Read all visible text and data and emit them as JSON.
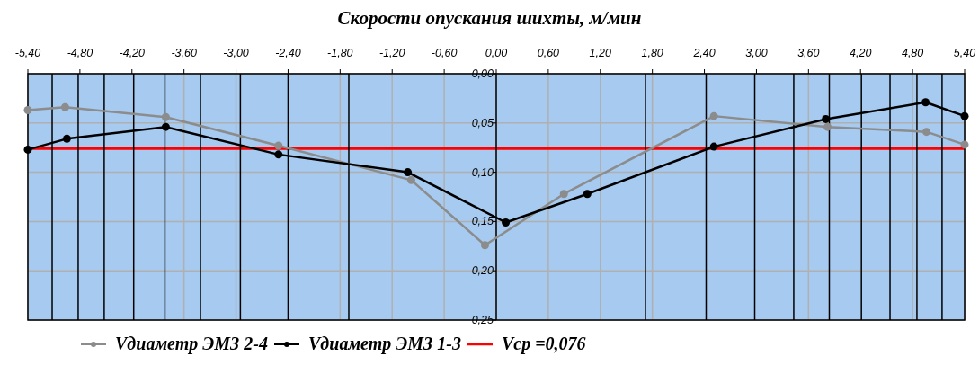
{
  "chart_data": {
    "type": "line",
    "title": "Скорости опускания шихты, м/мин",
    "xlim": [
      -5.4,
      5.4
    ],
    "xticks": [
      {
        "value": -5.4,
        "label": "-5,40"
      },
      {
        "value": -4.8,
        "label": "-4,80"
      },
      {
        "value": -4.2,
        "label": "-4,20"
      },
      {
        "value": -3.6,
        "label": "-3,60"
      },
      {
        "value": -3.0,
        "label": "-3,00"
      },
      {
        "value": -2.4,
        "label": "-2,40"
      },
      {
        "value": -1.8,
        "label": "-1,80"
      },
      {
        "value": -1.2,
        "label": "-1,20"
      },
      {
        "value": -0.6,
        "label": "-0,60"
      },
      {
        "value": 0,
        "label": "0,00"
      },
      {
        "value": 0.6,
        "label": "0,60"
      },
      {
        "value": 1.2,
        "label": "1,20"
      },
      {
        "value": 1.8,
        "label": "1,80"
      },
      {
        "value": 2.4,
        "label": "2,40"
      },
      {
        "value": 3.0,
        "label": "3,00"
      },
      {
        "value": 3.6,
        "label": "3,60"
      },
      {
        "value": 4.2,
        "label": "4,20"
      },
      {
        "value": 4.8,
        "label": "4,80"
      },
      {
        "value": 5.4,
        "label": "5,40"
      }
    ],
    "ylim": [
      0.25,
      0
    ],
    "yticks": [
      {
        "value": 0,
        "label": "0,00"
      },
      {
        "value": 0.05,
        "label": "0,05"
      },
      {
        "value": 0.1,
        "label": "0,10"
      },
      {
        "value": 0.15,
        "label": "0,15"
      },
      {
        "value": 0.2,
        "label": "0,20"
      },
      {
        "value": 0.25,
        "label": "0,25"
      }
    ],
    "grid": true,
    "legend": "bottom",
    "marker": "circle",
    "line_style": "solid",
    "series": [
      {
        "name": "Vдиаметр ЭМЗ 2-4",
        "color": "#8c8c8c",
        "x": [
          -5.4,
          -4.97,
          -3.81,
          -2.51,
          -0.98,
          -0.13,
          0.78,
          2.51,
          3.82,
          4.96,
          5.4
        ],
        "values": [
          0.037,
          0.034,
          0.044,
          0.073,
          0.108,
          0.174,
          0.122,
          0.043,
          0.054,
          0.059,
          0.072
        ]
      },
      {
        "name": "Vдиаметр ЭМЗ 1-3",
        "color": "#000000",
        "x": [
          -5.4,
          -4.95,
          -3.81,
          -2.51,
          -1.02,
          0.11,
          1.05,
          2.51,
          3.8,
          4.95,
          5.4
        ],
        "values": [
          0.077,
          0.066,
          0.054,
          0.082,
          0.1,
          0.151,
          0.122,
          0.074,
          0.046,
          0.029,
          0.043
        ]
      }
    ],
    "ref_lines": [
      {
        "axis": "y",
        "value": 0.076,
        "label": "Vср =0,076",
        "color": "#ff0000"
      },
      {
        "axis": "x",
        "value": -5.12,
        "color": "#000000"
      },
      {
        "axis": "x",
        "value": -4.82,
        "color": "#000000"
      },
      {
        "axis": "x",
        "value": -4.52,
        "color": "#000000"
      },
      {
        "axis": "x",
        "value": -4.18,
        "color": "#000000"
      },
      {
        "axis": "x",
        "value": -3.82,
        "color": "#000000"
      },
      {
        "axis": "x",
        "value": -3.41,
        "color": "#000000"
      },
      {
        "axis": "x",
        "value": -2.95,
        "color": "#000000"
      },
      {
        "axis": "x",
        "value": -2.4,
        "color": "#000000"
      },
      {
        "axis": "x",
        "value": -1.7,
        "color": "#000000"
      },
      {
        "axis": "x",
        "value": 1.72,
        "color": "#000000"
      },
      {
        "axis": "x",
        "value": 2.42,
        "color": "#000000"
      },
      {
        "axis": "x",
        "value": 2.98,
        "color": "#000000"
      },
      {
        "axis": "x",
        "value": 3.43,
        "color": "#000000"
      },
      {
        "axis": "x",
        "value": 3.84,
        "color": "#000000"
      },
      {
        "axis": "x",
        "value": 4.21,
        "color": "#000000"
      },
      {
        "axis": "x",
        "value": 4.54,
        "color": "#000000"
      },
      {
        "axis": "x",
        "value": 4.85,
        "color": "#000000"
      },
      {
        "axis": "x",
        "value": 5.14,
        "color": "#000000"
      }
    ]
  }
}
